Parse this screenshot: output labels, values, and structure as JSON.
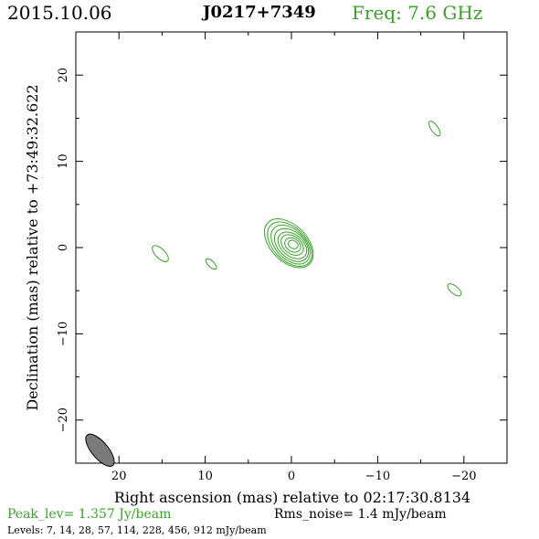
{
  "header": {
    "date": "2015.10.06",
    "source": "J0217+7349",
    "frequency": "Freq: 7.6 GHz"
  },
  "footer": {
    "peak": "Peak_lev=  1.357 Jy/beam",
    "rms": "Rms_noise=  1.4 mJy/beam",
    "levels": "Levels:   7,  14,  28,  57, 114, 228, 456, 912 mJy/beam"
  },
  "colors": {
    "contour": "#3aa02a",
    "beam_fill": "#7a7a7a",
    "text": "#000000"
  },
  "chart_data": {
    "type": "contour",
    "xlabel": "Right ascension (mas) relative to 02:17:30.8134",
    "ylabel": "Declination (mas) relative to +73:49:32.622",
    "xlim": [
      25,
      -25
    ],
    "ylim": [
      -25,
      25
    ],
    "x_ticks": [
      20,
      10,
      0,
      -10,
      -20
    ],
    "y_ticks": [
      20,
      10,
      0,
      -10,
      -20
    ],
    "x_tick_labels": [
      "20",
      "10",
      "0",
      "−10",
      "−20"
    ],
    "y_tick_labels": [
      "20",
      "10",
      "0",
      "−10",
      "−20"
    ],
    "levels_mJy_per_beam": [
      7,
      14,
      28,
      57,
      114,
      228,
      456,
      912
    ],
    "core_component": {
      "x": 0.0,
      "y": 0.5,
      "contours": [
        {
          "x": 0.3,
          "y": 0.5,
          "rx": 3.4,
          "ry": 2.1,
          "angle_deg": 45
        },
        {
          "x": 0.2,
          "y": 0.4,
          "rx": 3.1,
          "ry": 1.9,
          "angle_deg": 45
        },
        {
          "x": 0.1,
          "y": 0.35,
          "rx": 2.7,
          "ry": 1.7,
          "angle_deg": 45
        },
        {
          "x": 0.0,
          "y": 0.3,
          "rx": 2.3,
          "ry": 1.5,
          "angle_deg": 43
        },
        {
          "x": -0.1,
          "y": 0.25,
          "rx": 1.9,
          "ry": 1.25,
          "angle_deg": 40
        },
        {
          "x": -0.1,
          "y": 0.3,
          "rx": 1.45,
          "ry": 1.0,
          "angle_deg": 38
        },
        {
          "x": -0.15,
          "y": 0.3,
          "rx": 1.0,
          "ry": 0.75,
          "angle_deg": 35
        },
        {
          "x": -0.2,
          "y": 0.35,
          "rx": 0.6,
          "ry": 0.45,
          "angle_deg": 30
        }
      ]
    },
    "isolated_contours": [
      {
        "x": 15.2,
        "y": -0.7,
        "rx": 1.2,
        "ry": 0.55,
        "angle_deg": 45
      },
      {
        "x": 9.3,
        "y": -1.9,
        "rx": 0.8,
        "ry": 0.35,
        "angle_deg": 45
      },
      {
        "x": -16.6,
        "y": 13.8,
        "rx": 1.0,
        "ry": 0.4,
        "angle_deg": 55
      },
      {
        "x": -18.9,
        "y": -4.9,
        "rx": 0.95,
        "ry": 0.45,
        "angle_deg": 40
      }
    ],
    "beam": {
      "x": 22.2,
      "y": -23.5,
      "major": 2.3,
      "minor": 0.95,
      "angle_deg": 50
    }
  }
}
